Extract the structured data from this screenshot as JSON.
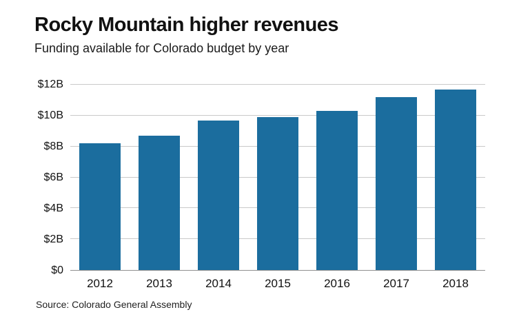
{
  "chart_data": {
    "type": "bar",
    "title": "Rocky Mountain higher revenues",
    "subtitle": "Funding available for Colorado budget by year",
    "categories": [
      "2012",
      "2013",
      "2014",
      "2015",
      "2016",
      "2017",
      "2018"
    ],
    "values": [
      8.2,
      8.7,
      9.7,
      9.9,
      10.3,
      11.2,
      11.7
    ],
    "unit": "billions of dollars",
    "ylim": [
      0,
      12
    ],
    "ytick_step": 2,
    "ytick_labels": [
      "$0",
      "$2B",
      "$4B",
      "$6B",
      "$8B",
      "$10B",
      "$12B"
    ],
    "grid": true,
    "legend": "none",
    "bar_color": "#1b6d9e",
    "source": "Source: Colorado General Assembly"
  }
}
